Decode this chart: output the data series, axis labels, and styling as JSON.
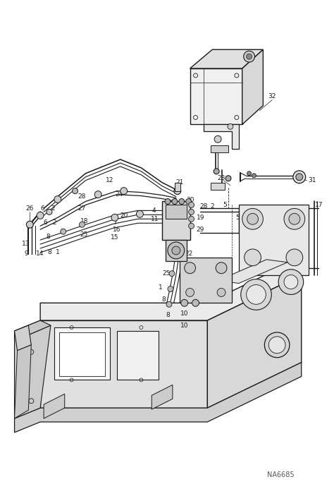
{
  "figure_width": 4.74,
  "figure_height": 6.93,
  "dpi": 100,
  "bg_color": "#ffffff",
  "line_color": "#1a1a1a",
  "label_color": "#1a1a1a",
  "watermark": "NA6685",
  "lw": 0.7
}
